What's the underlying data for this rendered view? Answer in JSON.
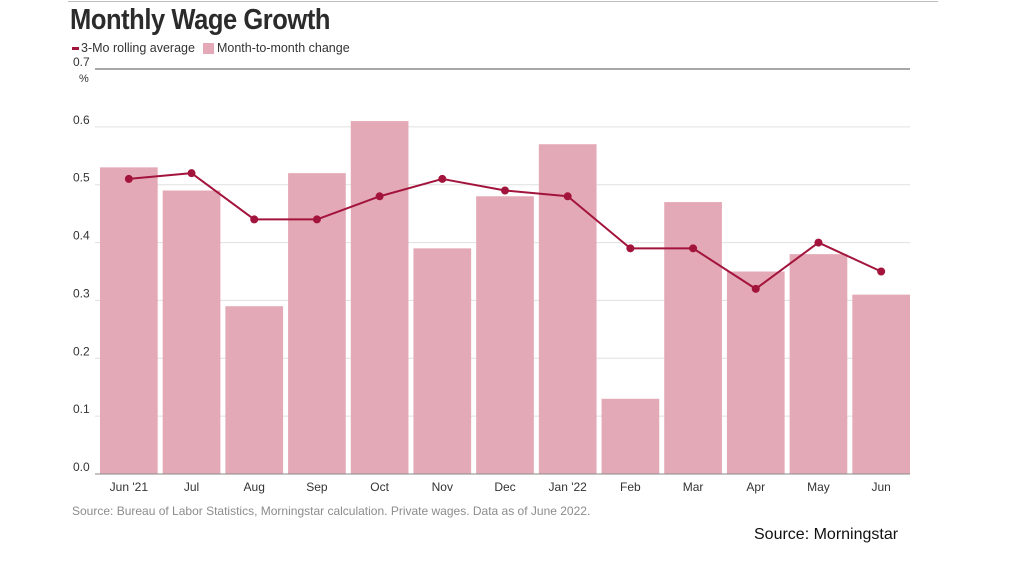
{
  "title": "Monthly Wage Growth",
  "source_note": "Source: Bureau of Labor Statistics, Morningstar calculation. Private wages. Data as of June 2022.",
  "credit": "Source: Morningstar",
  "colors": {
    "bar": "#e4a9b6",
    "line": "#a3143c",
    "grid": "#e0e0e0",
    "axis_text": "#333333"
  },
  "chart_data": {
    "type": "bar",
    "title": "Monthly Wage Growth",
    "legend_position": "top-left",
    "grid": true,
    "y_unit": "%",
    "ylim": [
      0,
      0.7
    ],
    "yticks": [
      "0.0",
      "0.1",
      "0.2",
      "0.3",
      "0.4",
      "0.5",
      "0.6",
      "0.7"
    ],
    "categories": [
      "Jun '21",
      "Jul",
      "Aug",
      "Sep",
      "Oct",
      "Nov",
      "Dec",
      "Jan '22",
      "Feb",
      "Mar",
      "Apr",
      "May",
      "Jun"
    ],
    "series": [
      {
        "name": "Month-to-month change",
        "type": "bar",
        "values": [
          0.53,
          0.49,
          0.29,
          0.52,
          0.61,
          0.39,
          0.48,
          0.57,
          0.13,
          0.47,
          0.35,
          0.38,
          0.31
        ]
      },
      {
        "name": "3-Mo rolling average",
        "type": "line",
        "values": [
          0.51,
          0.52,
          0.44,
          0.44,
          0.48,
          0.51,
          0.49,
          0.48,
          0.39,
          0.39,
          0.32,
          0.4,
          0.35
        ]
      }
    ]
  }
}
